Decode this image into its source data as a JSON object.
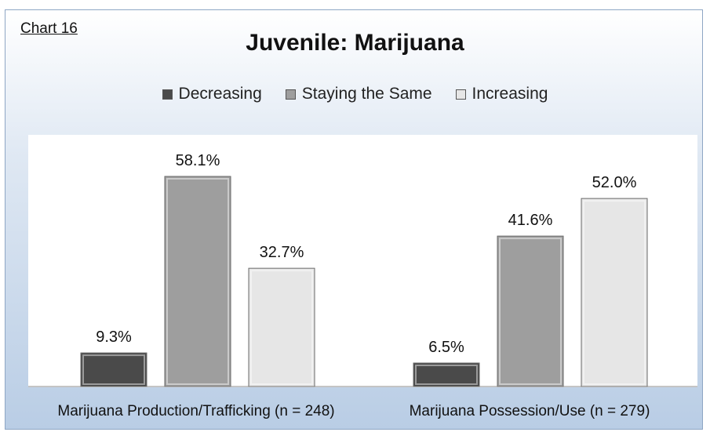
{
  "chart_label": "Chart 16",
  "chart_data": {
    "type": "bar",
    "title": "Juvenile: Marijuana",
    "categories": [
      "Marijuana Production/Trafficking  (n = 248)",
      "Marijuana Possession/Use  (n = 279)"
    ],
    "series": [
      {
        "name": "Decreasing",
        "values": [
          9.3,
          6.5
        ],
        "labels": [
          "9.3%",
          "6.5%"
        ],
        "color": "#4a4a4a"
      },
      {
        "name": "Staying the Same",
        "values": [
          58.1,
          41.6
        ],
        "labels": [
          "58.1%",
          "41.6%"
        ],
        "color": "#9e9e9e"
      },
      {
        "name": "Increasing",
        "values": [
          32.7,
          52.0
        ],
        "labels": [
          "32.7%",
          "52.0%"
        ],
        "color": "#e6e6e6"
      }
    ],
    "ylim": [
      0,
      60
    ],
    "legend_position": "top",
    "grid": false
  }
}
